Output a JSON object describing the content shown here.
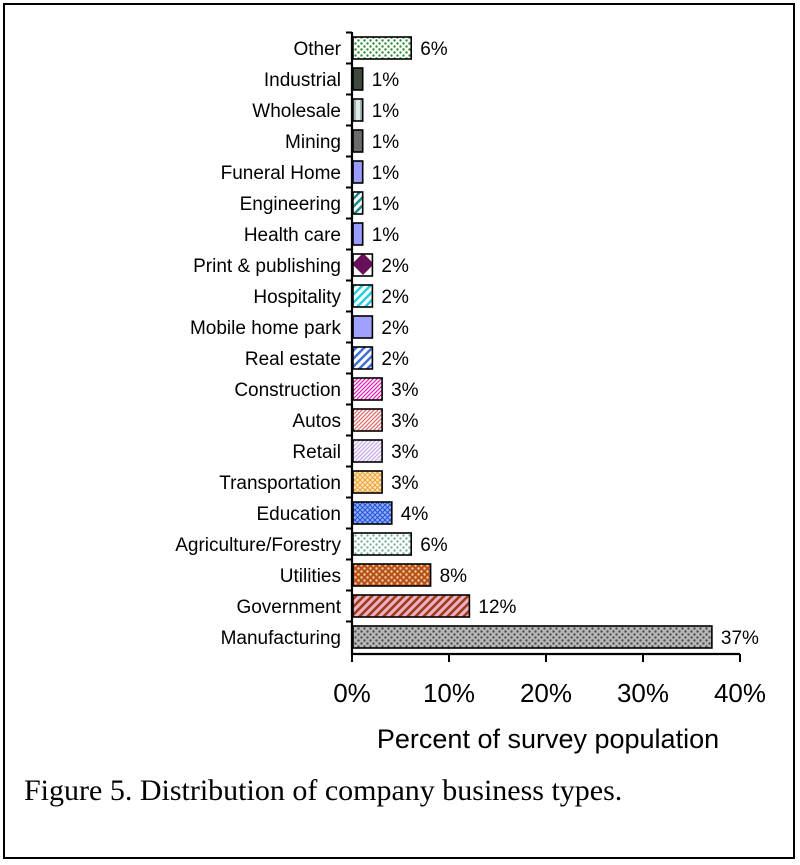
{
  "caption": "Figure 5. Distribution of company business types.",
  "chart_data": {
    "type": "bar",
    "orientation": "horizontal",
    "xlabel": "Percent of survey population",
    "ylabel": "",
    "xlim": [
      0,
      40
    ],
    "xticks": [
      "0%",
      "10%",
      "20%",
      "30%",
      "40%"
    ],
    "grid": false,
    "legend": "none",
    "categories": [
      "Other",
      "Industrial",
      "Wholesale",
      "Mining",
      "Funeral Home",
      "Engineering",
      "Health care",
      "Print & publishing",
      "Hospitality",
      "Mobile home park",
      "Real estate",
      "Construction",
      "Autos",
      "Retail",
      "Transportation",
      "Education",
      "Agriculture/Forestry",
      "Utilities",
      "Government",
      "Manufacturing"
    ],
    "values": [
      6,
      1,
      1,
      1,
      1,
      1,
      1,
      2,
      2,
      2,
      2,
      3,
      3,
      3,
      3,
      4,
      6,
      8,
      12,
      37
    ],
    "value_labels": [
      "6%",
      "1%",
      "1%",
      "1%",
      "1%",
      "1%",
      "1%",
      "2%",
      "2%",
      "2%",
      "2%",
      "3%",
      "3%",
      "3%",
      "3%",
      "4%",
      "6%",
      "8%",
      "12%",
      "37%"
    ],
    "bar_styles": [
      {
        "pattern": "dots",
        "fg": "#2e8b2e",
        "bg": "#ffffff"
      },
      {
        "pattern": "solid",
        "fg": "#3d4a3d",
        "bg": "#3d4a3d"
      },
      {
        "pattern": "vstripes",
        "fg": "#9fb4b4",
        "bg": "#dde8e8"
      },
      {
        "pattern": "solid",
        "fg": "#6b6b6b",
        "bg": "#6b6b6b"
      },
      {
        "pattern": "solid",
        "fg": "#9a9aff",
        "bg": "#9a9aff"
      },
      {
        "pattern": "diag",
        "fg": "#1a8a8a",
        "bg": "#ffffff"
      },
      {
        "pattern": "solid",
        "fg": "#9a9aff",
        "bg": "#9a9aff"
      },
      {
        "pattern": "bowtie",
        "fg": "#6a0f5a",
        "bg": "#ffffff"
      },
      {
        "pattern": "diag",
        "fg": "#22d0e0",
        "bg": "#ffffff"
      },
      {
        "pattern": "solid",
        "fg": "#a0a0ff",
        "bg": "#a0a0ff"
      },
      {
        "pattern": "diag",
        "fg": "#3f6fd8",
        "bg": "#ffffff"
      },
      {
        "pattern": "diagdense",
        "fg": "#e020b8",
        "bg": "#ffffff"
      },
      {
        "pattern": "diagdense",
        "fg": "#e06a6a",
        "bg": "#ffffff"
      },
      {
        "pattern": "diagdense",
        "fg": "#c8a8e8",
        "bg": "#ffffff"
      },
      {
        "pattern": "cross",
        "fg": "#e8a040",
        "bg": "#ffe8b8"
      },
      {
        "pattern": "cross",
        "fg": "#2850d0",
        "bg": "#8ab0ff"
      },
      {
        "pattern": "dots",
        "fg": "#7ab0a0",
        "bg": "#ffffff"
      },
      {
        "pattern": "dots",
        "fg": "#ffd0a0",
        "bg": "#b5501a"
      },
      {
        "pattern": "diag",
        "fg": "#a03818",
        "bg": "#e8b0c0"
      },
      {
        "pattern": "dots",
        "fg": "#505050",
        "bg": "#b8b8b8"
      }
    ]
  }
}
